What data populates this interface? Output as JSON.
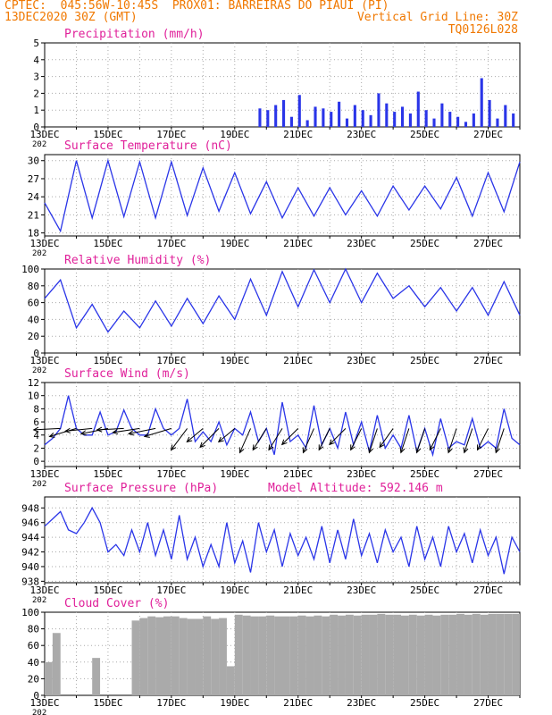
{
  "header": {
    "line1_left": "CPTEC:  045:56W-10:45S  PROX01: BARREIRAS DO PIAUI (PI)",
    "line2_left": "13DEC2020 30Z (GMT)",
    "line2_right": "Vertical Grid Line: 30Z",
    "line3_right": "TQ0126L028"
  },
  "colors": {
    "header": "#f07800",
    "title": "#e0209a",
    "series": "#2a35e8",
    "cloud": "#aaaaaa",
    "grid": "#aaaaaa"
  },
  "x_axis": {
    "labels": [
      "13DEC",
      "15DEC",
      "17DEC",
      "19DEC",
      "21DEC",
      "23DEC",
      "25DEC",
      "27DEC"
    ],
    "year_label": "202",
    "range_days": [
      0,
      15
    ]
  },
  "chart_data": [
    {
      "type": "bar",
      "title": "Precipitation (mm/h)",
      "ylim": [
        0,
        5
      ],
      "yticks": [
        "0",
        "1",
        "2",
        "3",
        "4",
        "5"
      ],
      "grid": true,
      "series": [
        {
          "times": [
            6.75,
            7.0,
            7.25,
            7.5,
            7.75,
            8.0,
            8.25,
            8.5,
            8.75,
            9.0,
            9.25,
            9.5,
            9.75,
            10.0,
            10.25,
            10.5,
            10.75,
            11.0,
            11.25,
            11.5,
            11.75,
            12.0,
            12.25,
            12.5,
            12.75,
            13.0,
            13.25,
            13.5,
            13.75,
            14.0,
            14.25,
            14.5,
            14.75
          ],
          "values": [
            1.1,
            1.0,
            1.3,
            1.6,
            0.6,
            1.9,
            0.4,
            1.2,
            1.1,
            0.9,
            1.5,
            0.5,
            1.3,
            1.0,
            0.7,
            2.0,
            1.4,
            0.9,
            1.2,
            0.8,
            2.1,
            1.0,
            0.5,
            1.4,
            0.9,
            0.6,
            0.3,
            0.8,
            2.9,
            1.6,
            0.5,
            1.3,
            0.8
          ]
        }
      ]
    },
    {
      "type": "line",
      "title": "Surface Temperature (nC)",
      "ylim": [
        17.5,
        31
      ],
      "yticks": [
        "18",
        "21",
        "24",
        "27",
        "30"
      ],
      "grid": true,
      "series": [
        {
          "x": [
            0,
            0.5,
            1,
            1.5,
            2,
            2.5,
            3,
            3.5,
            4,
            4.5,
            5,
            5.5,
            6,
            6.5,
            7,
            7.5,
            8,
            8.5,
            9,
            9.5,
            10,
            10.5,
            11,
            11.5,
            12,
            12.5,
            13,
            13.5,
            14,
            14.5,
            15
          ],
          "values": [
            23,
            18.3,
            30,
            20.5,
            30,
            20.7,
            29.8,
            20.5,
            29.8,
            20.9,
            28.8,
            21.6,
            28,
            21.2,
            26.5,
            20.5,
            25.5,
            20.8,
            25.5,
            21,
            25,
            20.8,
            25.8,
            21.8,
            25.8,
            22,
            27.2,
            20.8,
            28,
            21.5,
            29.8
          ]
        }
      ]
    },
    {
      "type": "line",
      "title": "Relative Humidity (%)",
      "ylim": [
        0,
        100
      ],
      "yticks": [
        "0",
        "20",
        "40",
        "60",
        "80",
        "100"
      ],
      "grid": true,
      "series": [
        {
          "x": [
            0,
            0.5,
            1,
            1.5,
            2,
            2.5,
            3,
            3.5,
            4,
            4.5,
            5,
            5.5,
            6,
            6.5,
            7,
            7.5,
            8,
            8.5,
            9,
            9.5,
            10,
            10.5,
            11,
            11.5,
            12,
            12.5,
            13,
            13.5,
            14,
            14.5,
            15
          ],
          "values": [
            65,
            87,
            30,
            58,
            25,
            50,
            30,
            62,
            32,
            65,
            35,
            68,
            40,
            88,
            45,
            97,
            55,
            99,
            60,
            100,
            60,
            95,
            65,
            80,
            55,
            78,
            50,
            78,
            45,
            85,
            45
          ]
        }
      ]
    },
    {
      "type": "line",
      "title": "Surface Wind (m/s)",
      "ylim": [
        -0.8,
        12
      ],
      "yticks": [
        "0",
        "2",
        "4",
        "6",
        "8",
        "10",
        "12"
      ],
      "grid": true,
      "series": [
        {
          "x": [
            0,
            0.25,
            0.5,
            0.75,
            1,
            1.25,
            1.5,
            1.75,
            2,
            2.25,
            2.5,
            2.75,
            3,
            3.25,
            3.5,
            3.75,
            4,
            4.25,
            4.5,
            4.75,
            5,
            5.25,
            5.5,
            5.75,
            6,
            6.25,
            6.5,
            6.75,
            7,
            7.25,
            7.5,
            7.75,
            8,
            8.25,
            8.5,
            8.75,
            9,
            9.25,
            9.5,
            9.75,
            10,
            10.25,
            10.5,
            10.75,
            11,
            11.25,
            11.5,
            11.75,
            12,
            12.25,
            12.5,
            12.75,
            13,
            13.25,
            13.5,
            13.75,
            14,
            14.25,
            14.5,
            14.75,
            15
          ],
          "values": [
            2.5,
            3.5,
            5,
            10,
            5,
            4,
            4,
            7.5,
            4,
            4.5,
            7.8,
            5,
            4,
            4,
            8,
            5,
            4,
            5,
            9.5,
            3,
            4.5,
            3,
            6,
            2.5,
            5,
            4,
            7.5,
            3,
            5,
            1,
            9,
            3,
            4,
            2,
            8.5,
            2.5,
            5,
            2,
            7.5,
            2.5,
            6,
            1.5,
            7,
            2,
            4,
            2,
            7,
            1.5,
            5,
            1,
            6.5,
            2,
            3,
            2.5,
            6.5,
            2,
            3,
            2,
            8,
            3.5,
            2.5
          ]
        }
      ],
      "vectors": {
        "times": [
          0.5,
          1,
          1.5,
          2,
          2.5,
          3,
          3.5,
          4,
          4.5,
          5,
          5.5,
          6,
          6.5,
          7,
          7.5,
          8,
          8.5,
          9,
          9.5,
          10,
          10.5,
          11,
          11.5,
          12,
          12.5,
          13,
          13.5,
          14,
          14.5
        ],
        "dx": [
          -1,
          -1,
          -1,
          -1,
          -1,
          -1,
          -1,
          -1,
          -0.6,
          -0.6,
          -0.7,
          -0.6,
          -0.4,
          -0.5,
          -0.5,
          -0.6,
          -0.4,
          -0.4,
          -0.6,
          -0.4,
          -0.3,
          -0.5,
          -0.3,
          -0.3,
          -0.4,
          -0.3,
          -0.3,
          -0.4,
          -0.3
        ],
        "dy": [
          0.05,
          0.3,
          0.1,
          0.2,
          0.05,
          0.15,
          0.2,
          0.3,
          0.8,
          0.5,
          0.7,
          0.5,
          0.9,
          0.8,
          0.8,
          0.6,
          0.9,
          0.8,
          0.6,
          0.8,
          0.9,
          0.7,
          0.9,
          0.9,
          0.8,
          0.9,
          0.9,
          0.8,
          0.9
        ]
      }
    },
    {
      "type": "line",
      "title": "Surface Pressure (hPa)",
      "annotation": "Model Altitude: 592.146 m",
      "ylim": [
        937.8,
        949.5
      ],
      "yticks": [
        "938",
        "940",
        "942",
        "944",
        "946",
        "948"
      ],
      "grid": true,
      "series": [
        {
          "x": [
            0,
            0.25,
            0.5,
            0.75,
            1,
            1.25,
            1.5,
            1.75,
            2,
            2.25,
            2.5,
            2.75,
            3,
            3.25,
            3.5,
            3.75,
            4,
            4.25,
            4.5,
            4.75,
            5,
            5.25,
            5.5,
            5.75,
            6,
            6.25,
            6.5,
            6.75,
            7,
            7.25,
            7.5,
            7.75,
            8,
            8.25,
            8.5,
            8.75,
            9,
            9.25,
            9.5,
            9.75,
            10,
            10.25,
            10.5,
            10.75,
            11,
            11.25,
            11.5,
            11.75,
            12,
            12.25,
            12.5,
            12.75,
            13,
            13.25,
            13.5,
            13.75,
            14,
            14.25,
            14.5,
            14.75,
            15
          ],
          "values": [
            945.5,
            946.5,
            947.5,
            945,
            944.5,
            946,
            948,
            946,
            942,
            943,
            941.5,
            945,
            942,
            946,
            941.5,
            945,
            941,
            947,
            941,
            944,
            940,
            943,
            940,
            946,
            940.5,
            943.5,
            939.2,
            946,
            942,
            945,
            940,
            944.5,
            941.5,
            944,
            941,
            945.5,
            940.5,
            945,
            941,
            946.5,
            941.5,
            944.5,
            940.5,
            945,
            942,
            944,
            940,
            945.5,
            941,
            944,
            940,
            945.5,
            942,
            944.5,
            940.5,
            945,
            941.5,
            944,
            939,
            944,
            942
          ]
        }
      ]
    },
    {
      "type": "bar",
      "title": "Cloud Cover (%)",
      "ylim": [
        0,
        100
      ],
      "yticks": [
        "0",
        "20",
        "40",
        "60",
        "80",
        "100"
      ],
      "grid": true,
      "series": [
        {
          "times": [
            0,
            0.25,
            0.5,
            0.75,
            1,
            1.25,
            1.5,
            1.75,
            2,
            2.25,
            2.5,
            2.75,
            3,
            3.25,
            3.5,
            3.75,
            4,
            4.25,
            4.5,
            4.75,
            5,
            5.25,
            5.5,
            5.75,
            6,
            6.25,
            6.5,
            6.75,
            7,
            7.25,
            7.5,
            7.75,
            8,
            8.25,
            8.5,
            8.75,
            9,
            9.25,
            9.5,
            9.75,
            10,
            10.25,
            10.5,
            10.75,
            11,
            11.25,
            11.5,
            11.75,
            12,
            12.25,
            12.5,
            12.75,
            13,
            13.25,
            13.5,
            13.75,
            14,
            14.25,
            14.5,
            14.75
          ],
          "values": [
            40,
            75,
            0,
            0,
            0,
            0,
            45,
            0,
            0,
            0,
            0,
            90,
            93,
            95,
            94,
            95,
            95,
            93,
            92,
            92,
            95,
            92,
            93,
            35,
            97,
            96,
            95,
            95,
            96,
            95,
            95,
            95,
            96,
            95,
            96,
            95,
            97,
            96,
            97,
            96,
            97,
            97,
            98,
            97,
            97,
            96,
            97,
            96,
            97,
            96,
            97,
            97,
            98,
            97,
            98,
            97,
            98,
            98,
            98,
            98
          ]
        }
      ]
    }
  ]
}
